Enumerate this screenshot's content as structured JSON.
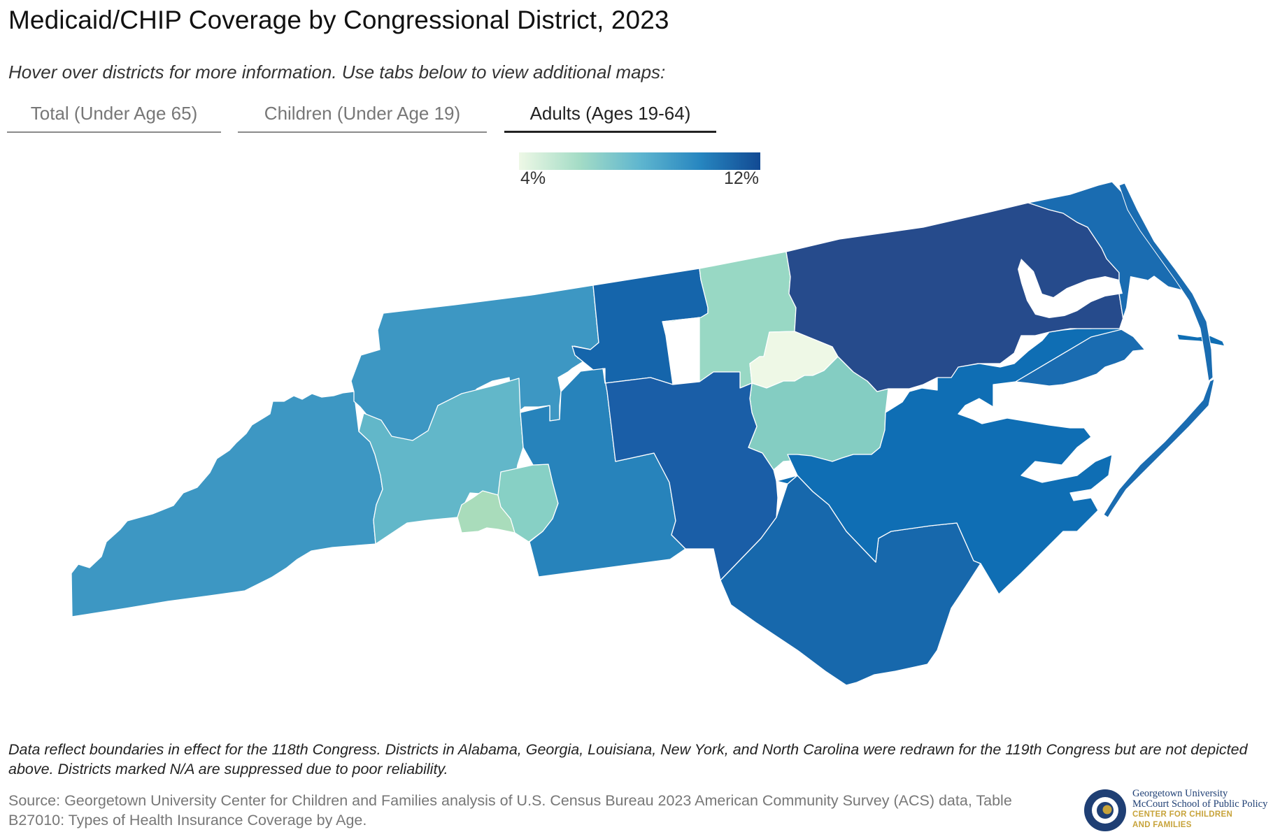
{
  "title": "Medicaid/CHIP Coverage by Congressional District, 2023",
  "subtitle": "Hover over districts for more information. Use tabs below to view additional maps:",
  "tabs": [
    {
      "label": "Total (Under Age 65)",
      "active": false
    },
    {
      "label": "Children (Under Age 19)",
      "active": false
    },
    {
      "label": "Adults (Ages 19-64)",
      "active": true
    }
  ],
  "legend": {
    "min_label": "4%",
    "max_label": "12%",
    "min": 4,
    "max": 12,
    "colors": [
      "#eef8e6",
      "#a4dcc6",
      "#5fb6cf",
      "#2786c0",
      "#124a93"
    ]
  },
  "map": {
    "state": "North Carolina",
    "measure": "Medicaid/CHIP coverage, adults ages 19-64 (%)",
    "boundary_color": "#ffffff",
    "district_colors": {
      "district-a": "#3d97c3",
      "district-b": "#62b7c9",
      "district-c": "#a9dcbb",
      "district-d": "#87d0c5",
      "district-e": "#2783bb",
      "district-f": "#1565ab",
      "district-g": "#98d8c4",
      "district-h": "#eef8e6",
      "district-i": "#84cdc2",
      "district-j": "#1a5ea7",
      "district-k": "#1768ac",
      "district-l": "#0f6eb4",
      "district-m": "#264b8c",
      "district-n": "#1a6cb1"
    }
  },
  "footnote": "Data reflect boundaries in effect for the 118th Congress. Districts in Alabama, Georgia, Louisiana, New York, and North Carolina were redrawn for the 119th Congress but are not depicted above. Districts marked N/A are suppressed due to poor reliability.",
  "source": "Source: Georgetown University Center for Children and Families analysis of U.S. Census Bureau 2023 American Community Survey (ACS) data, Table B27010: Types of Health Insurance Coverage by Age.",
  "logo": {
    "line1": "Georgetown University",
    "line2": "McCourt School of Public Policy",
    "line3": "CENTER FOR CHILDREN",
    "line4": "AND FAMILIES",
    "navy": "#1f3f74",
    "gold": "#c7a33a"
  }
}
